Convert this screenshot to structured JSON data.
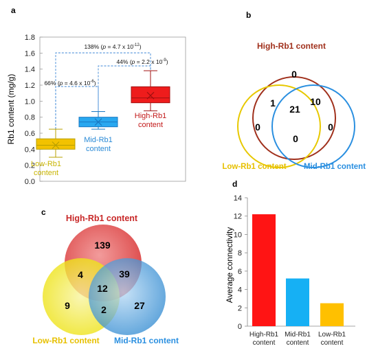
{
  "panels": {
    "a": "a",
    "b": "b",
    "c": "c",
    "d": "d"
  },
  "chart_data": [
    {
      "panel": "a",
      "type": "box",
      "ylabel": "Rb1 content (mg/g)",
      "ylim": [
        0,
        1.8
      ],
      "yticks": [
        "0.0",
        "0.2",
        "0.4",
        "0.6",
        "0.8",
        "1.0",
        "1.2",
        "1.4",
        "1.6",
        "1.8"
      ],
      "grid": false,
      "groups": [
        {
          "label_line1": "Low-Rb1",
          "label_line2": "content",
          "color": "#f2c200",
          "stroke": "#b8a000",
          "label_color": "#c8b400",
          "min": 0.3,
          "q1": 0.4,
          "median": 0.45,
          "q3": 0.53,
          "max": 0.65,
          "mean": 0.45
        },
        {
          "label_line1": "Mid-Rb1",
          "label_line2": "content",
          "color": "#29a8f0",
          "stroke": "#1a78c2",
          "label_color": "#2a8ad6",
          "min": 0.65,
          "q1": 0.68,
          "median": 0.74,
          "q3": 0.8,
          "max": 0.87,
          "mean": 0.74
        },
        {
          "label_line1": "High-Rb1",
          "label_line2": "content",
          "color": "#ee1c1c",
          "stroke": "#a01010",
          "label_color": "#c21818",
          "min": 0.88,
          "q1": 0.98,
          "median": 1.04,
          "q3": 1.18,
          "max": 1.38,
          "mean": 1.07
        }
      ],
      "annotations": [
        {
          "pct": "138%",
          "p_base": "4.7 x 10",
          "p_exp": "-12",
          "from": 0,
          "to": 2
        },
        {
          "pct": "44%",
          "p_base": "2.2 x 10",
          "p_exp": "-9",
          "from": 1,
          "to": 2
        },
        {
          "pct": "66%",
          "p_base": "4.6 x 10",
          "p_exp": "-6",
          "from": 0,
          "to": 1
        }
      ]
    },
    {
      "panel": "b",
      "type": "venn",
      "sets": [
        {
          "label": "High-Rb1 content",
          "color": "#a0301c"
        },
        {
          "label": "Low-Rb1 content",
          "color": "#e7c800"
        },
        {
          "label": "Mid-Rb1 content",
          "color": "#2a8fe0"
        }
      ],
      "regions": {
        "high_only": "0",
        "low_only": "0",
        "mid_only": "0",
        "high_low": "1",
        "high_mid": "10",
        "low_mid": "0",
        "all": "21"
      }
    },
    {
      "panel": "c",
      "type": "venn",
      "sets": [
        {
          "label": "High-Rb1 content",
          "color": "#d93030"
        },
        {
          "label": "Low-Rb1 content",
          "color": "#e3d000"
        },
        {
          "label": "Mid-Rb1 content",
          "color": "#2a8fe0"
        }
      ],
      "regions": {
        "high_only": "139",
        "low_only": "9",
        "mid_only": "27",
        "high_low": "4",
        "high_mid": "39",
        "low_mid": "2",
        "all": "12"
      }
    },
    {
      "panel": "d",
      "type": "bar",
      "ylabel": "Average connectivity",
      "ylim": [
        0,
        14
      ],
      "yticks": [
        "0",
        "2",
        "4",
        "6",
        "8",
        "10",
        "12",
        "14"
      ],
      "grid": false,
      "categories": [
        {
          "line1": "High-Rb1",
          "line2": "content"
        },
        {
          "line1": "Mid-Rb1",
          "line2": "content"
        },
        {
          "line1": "Low-Rb1",
          "line2": "content"
        }
      ],
      "values": [
        12.2,
        5.2,
        2.5
      ],
      "colors": [
        "#ff1414",
        "#16b0f4",
        "#ffc000"
      ]
    }
  ]
}
